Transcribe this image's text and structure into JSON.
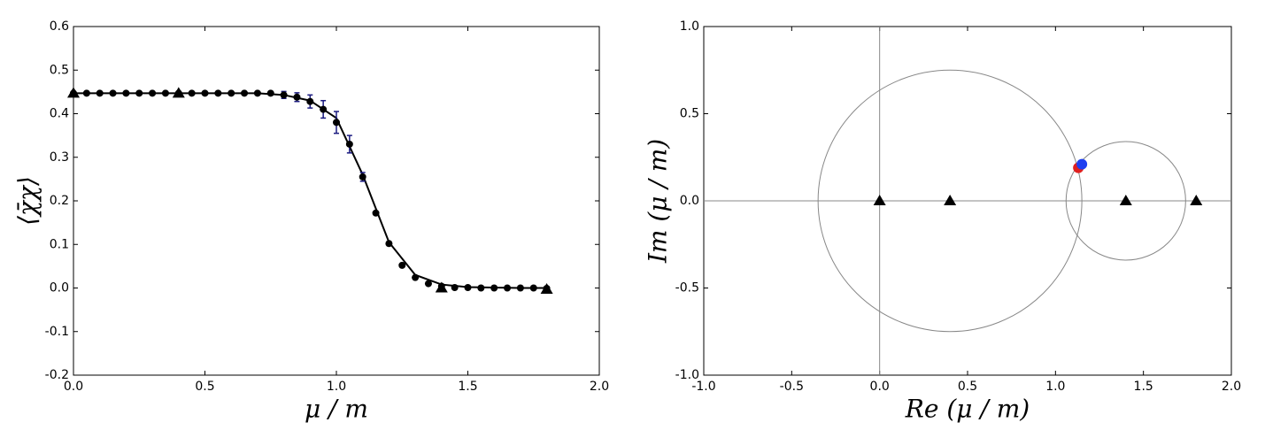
{
  "chart_data": [
    {
      "type": "scatter",
      "xlabel": "μ / m",
      "ylabel": "⟨χ̄χ⟩",
      "xlim": [
        0,
        2
      ],
      "ylim": [
        -0.2,
        0.6
      ],
      "xticks": [
        {
          "value": 0,
          "label": "0.0"
        },
        0.5,
        {
          "value": 1,
          "label": "1.0"
        },
        1.5,
        {
          "value": 2,
          "label": "2.0"
        }
      ],
      "yticks": [
        -0.2,
        -0.1,
        {
          "value": 0,
          "label": "0.0"
        },
        0.1,
        0.2,
        0.3,
        0.4,
        0.5,
        0.6
      ],
      "series": [
        {
          "style": "line",
          "color": "#000000",
          "x": [
            0,
            0.1,
            0.2,
            0.3,
            0.4,
            0.5,
            0.6,
            0.7,
            0.8,
            0.9,
            1.0,
            1.1,
            1.2,
            1.3,
            1.4,
            1.5,
            1.6,
            1.7,
            1.8
          ],
          "values": [
            0.447,
            0.447,
            0.447,
            0.447,
            0.447,
            0.447,
            0.447,
            0.447,
            0.443,
            0.43,
            0.39,
            0.26,
            0.105,
            0.03,
            0.008,
            0.002,
            0.001,
            0,
            0
          ]
        },
        {
          "style": "o",
          "color": "#000000",
          "error_color": "#1a1a80",
          "x": [
            0,
            0.05,
            0.1,
            0.15,
            0.2,
            0.25,
            0.3,
            0.35,
            0.4,
            0.45,
            0.5,
            0.55,
            0.6,
            0.65,
            0.7,
            0.75,
            0.8,
            0.85,
            0.9,
            0.95,
            1.0,
            1.05,
            1.1,
            1.15,
            1.2,
            1.25,
            1.3,
            1.35,
            1.4,
            1.45,
            1.5,
            1.55,
            1.6,
            1.65,
            1.7,
            1.75,
            1.8
          ],
          "values": [
            0.447,
            0.447,
            0.447,
            0.447,
            0.447,
            0.447,
            0.447,
            0.447,
            0.447,
            0.447,
            0.447,
            0.447,
            0.447,
            0.447,
            0.447,
            0.447,
            0.443,
            0.438,
            0.428,
            0.41,
            0.38,
            0.33,
            0.255,
            0.172,
            0.102,
            0.052,
            0.024,
            0.01,
            0.004,
            0.001,
            0.001,
            0,
            0,
            0,
            0,
            0,
            -0.001
          ],
          "errors": [
            null,
            null,
            null,
            null,
            null,
            null,
            null,
            null,
            null,
            null,
            null,
            null,
            null,
            null,
            null,
            null,
            0.008,
            0.01,
            0.015,
            0.02,
            0.025,
            0.02,
            0.01,
            null,
            null,
            null,
            null,
            null,
            null,
            null,
            null,
            null,
            null,
            null,
            null,
            null,
            null
          ]
        },
        {
          "style": "^",
          "color": "#000000",
          "x": [
            0,
            0.4,
            1.4,
            1.8
          ],
          "values": [
            0.447,
            0.447,
            0,
            -0.003
          ]
        }
      ]
    },
    {
      "type": "scatter",
      "xlabel": "Re (μ / m)",
      "ylabel": "Im (μ / m)",
      "xlim": [
        -1,
        2
      ],
      "ylim": [
        -1,
        1
      ],
      "zero_lines": true,
      "xticks": [
        {
          "value": -1,
          "label": "-1.0"
        },
        -0.5,
        {
          "value": 0,
          "label": "0.0"
        },
        0.5,
        {
          "value": 1,
          "label": "1.0"
        },
        1.5,
        {
          "value": 2,
          "label": "2.0"
        }
      ],
      "yticks": [
        {
          "value": -1,
          "label": "-1.0"
        },
        -0.5,
        {
          "value": 0,
          "label": "0.0"
        },
        0.5,
        {
          "value": 1,
          "label": "1.0"
        }
      ],
      "series": [
        {
          "style": "circle",
          "color": "#888888",
          "x": [
            0.4,
            1.4
          ],
          "values": [
            0,
            0
          ],
          "sizes": [
            0.75,
            0.34
          ]
        },
        {
          "style": "^",
          "color": "#000000",
          "x": [
            0,
            0.4,
            1.4,
            1.8
          ],
          "values": [
            0,
            0,
            0,
            0
          ]
        },
        {
          "style": "o",
          "color": "#e02020",
          "x": [
            1.13
          ],
          "values": [
            0.19
          ]
        },
        {
          "style": "o",
          "color": "#1f3ff0",
          "x": [
            1.15
          ],
          "values": [
            0.21
          ]
        }
      ]
    }
  ]
}
